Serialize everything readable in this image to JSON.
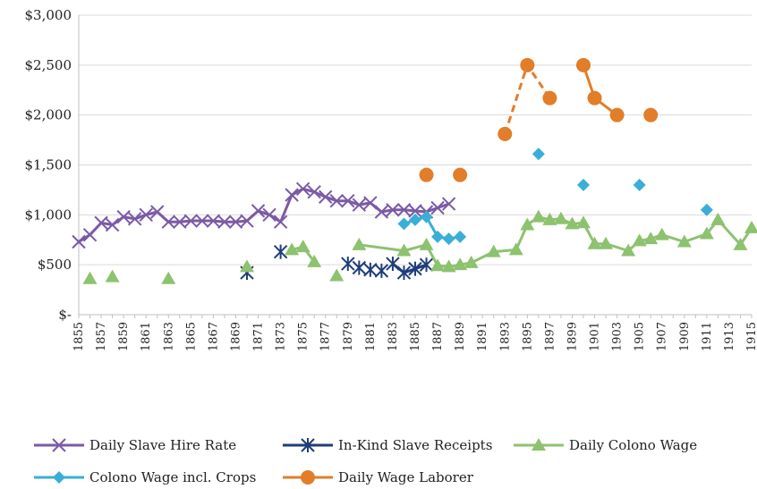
{
  "chart_data": {
    "type": "line",
    "title": "",
    "xlabel": "",
    "ylabel": "",
    "xlim": [
      1855,
      1915
    ],
    "ylim": [
      0,
      3000
    ],
    "grid": "horizontal",
    "legend_position": "bottom",
    "y_ticks": [
      0,
      500,
      1000,
      1500,
      2000,
      2500,
      3000
    ],
    "y_tick_labels": [
      "$-",
      "$500",
      "$1,000",
      "$1,500",
      "$2,000",
      "$2,500",
      "$3,000"
    ],
    "x_tick_labels": [
      "1855",
      "1857",
      "1859",
      "1861",
      "1863",
      "1865",
      "1867",
      "1869",
      "1871",
      "1873",
      "1875",
      "1877",
      "1879",
      "1881",
      "1883",
      "1885",
      "1887",
      "1889",
      "1891",
      "1893",
      "1895",
      "1897",
      "1899",
      "1901",
      "1903",
      "1905",
      "1907",
      "1909",
      "1911",
      "1913",
      "1915"
    ],
    "series": [
      {
        "name": "Daily Slave Hire Rate",
        "color": "#7b5aa6",
        "marker": "x",
        "x": [
          1855,
          1856,
          1857,
          1858,
          1859,
          1860,
          1861,
          1862,
          1863,
          1864,
          1865,
          1866,
          1867,
          1868,
          1869,
          1870,
          1871,
          1872,
          1873,
          1874,
          1875,
          1876,
          1877,
          1878,
          1879,
          1880,
          1881,
          1882,
          1883,
          1884,
          1885,
          1886,
          1887,
          1888
        ],
        "y": [
          730,
          800,
          920,
          900,
          980,
          960,
          1000,
          1030,
          930,
          930,
          940,
          940,
          940,
          930,
          930,
          940,
          1040,
          1000,
          930,
          1200,
          1260,
          1230,
          1180,
          1140,
          1140,
          1100,
          1120,
          1030,
          1050,
          1050,
          1040,
          1030,
          1070,
          1110
        ]
      },
      {
        "name": "In-Kind Slave Receipts",
        "color": "#1f3d7a",
        "marker": "asterisk",
        "x": [
          1870,
          1873,
          1879,
          1880,
          1881,
          1882,
          1883,
          1884,
          1885,
          1886
        ],
        "y": [
          420,
          630,
          510,
          470,
          450,
          440,
          510,
          420,
          460,
          500
        ],
        "segments": [
          [
            6,
            9
          ]
        ]
      },
      {
        "name": "Daily Colono Wage",
        "color": "#8dc26f",
        "marker": "triangle",
        "x": [
          1856,
          1858,
          1863,
          1870,
          1874,
          1875,
          1876,
          1878,
          1880,
          1884,
          1886,
          1887,
          1888,
          1889,
          1890,
          1892,
          1894,
          1895,
          1896,
          1897,
          1898,
          1899,
          1900,
          1901,
          1902,
          1904,
          1905,
          1906,
          1907,
          1909,
          1911,
          1912,
          1914,
          1915
        ],
        "y": [
          360,
          380,
          360,
          480,
          650,
          680,
          530,
          390,
          700,
          640,
          700,
          490,
          480,
          500,
          520,
          630,
          650,
          900,
          980,
          950,
          960,
          910,
          920,
          710,
          710,
          640,
          740,
          760,
          800,
          730,
          810,
          950,
          700,
          870
        ],
        "segments": [
          [
            4,
            6
          ],
          [
            8,
            33
          ]
        ]
      },
      {
        "name": "Colono Wage incl. Crops",
        "color": "#3aaed6",
        "marker": "diamond",
        "x": [
          1884,
          1885,
          1886,
          1887,
          1888,
          1889,
          1896,
          1900,
          1905,
          1911
        ],
        "y": [
          910,
          950,
          980,
          780,
          760,
          780,
          1610,
          1300,
          1300,
          1050
        ],
        "segments": [
          [
            0,
            5
          ]
        ]
      },
      {
        "name": "Daily Wage Laborer",
        "color": "#e27d2a",
        "marker": "circle",
        "x": [
          1886,
          1889,
          1893,
          1895,
          1897,
          1900,
          1901,
          1903,
          1906
        ],
        "y": [
          1400,
          1400,
          1810,
          2500,
          2170,
          2500,
          2170,
          2000,
          2000
        ],
        "segments": [
          [
            2,
            4,
            "dashed"
          ],
          [
            5,
            7,
            "solid"
          ]
        ]
      }
    ]
  }
}
